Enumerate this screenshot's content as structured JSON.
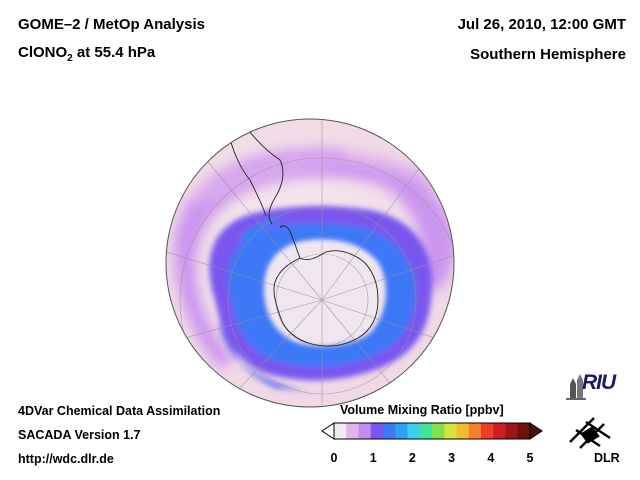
{
  "header": {
    "title_line1": "GOME–2 / MetOp Analysis",
    "title_species": "ClONO",
    "title_species_sub": "2",
    "title_level": " at 55.4 hPa",
    "date": "Jul 26, 2010, 12:00 GMT",
    "region": "Southern Hemisphere"
  },
  "footer": {
    "line1": "4DVar Chemical Data Assimilation",
    "line2": "SACADA Version 1.7",
    "line3": "http://wdc.dlr.de"
  },
  "colorbar": {
    "title": "Volume Mixing Ratio [ppbv]",
    "ticks": [
      "0",
      "1",
      "2",
      "3",
      "4",
      "5"
    ],
    "colors": [
      "#f2e8f0",
      "#e0b4ea",
      "#c48cf0",
      "#7a56ef",
      "#3c78f7",
      "#2fa0f7",
      "#36d2ef",
      "#45e39a",
      "#83e04a",
      "#d7e33c",
      "#f1bc2f",
      "#f3802b",
      "#ef3d28",
      "#cc1e1e",
      "#9b1616",
      "#6e1010"
    ],
    "under_color": "#ffffff",
    "over_color": "#4a1010"
  },
  "logos": {
    "riu": "RIU",
    "dlr": "DLR"
  }
}
